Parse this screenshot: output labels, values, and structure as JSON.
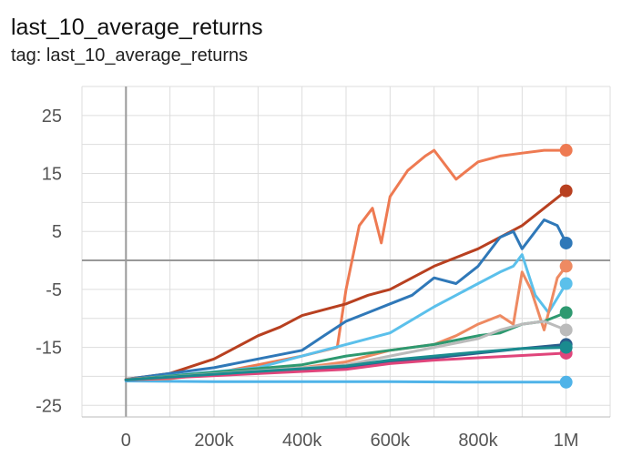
{
  "header": {
    "title": "last_10_average_returns",
    "subtitle": "tag: last_10_average_returns"
  },
  "chart_data": {
    "type": "line",
    "title": "last_10_average_returns",
    "subtitle": "tag: last_10_average_returns",
    "xlabel": "",
    "ylabel": "",
    "xlim": [
      -100000,
      1100000
    ],
    "ylim": [
      -27,
      30
    ],
    "grid": true,
    "legend": "none",
    "xticks": [
      0,
      200000,
      400000,
      600000,
      800000,
      1000000
    ],
    "xtick_labels": [
      "0",
      "200k",
      "400k",
      "600k",
      "800k",
      "1M"
    ],
    "yticks": [
      25,
      15,
      5,
      -5,
      -15,
      -25
    ],
    "ytick_labels": [
      "25",
      "15",
      "5",
      "-5",
      "-15",
      "-25"
    ],
    "series": [
      {
        "color": "#4fb3e8",
        "x": [
          0,
          200000,
          400000,
          600000,
          800000,
          1000000
        ],
        "y": [
          -20.8,
          -20.9,
          -20.9,
          -20.9,
          -21,
          -21
        ]
      },
      {
        "color": "#ee7a52",
        "x": [
          0,
          100000,
          200000,
          300000,
          400000,
          480000,
          500000,
          530000,
          560000,
          580000,
          600000,
          640000,
          680000,
          700000,
          730000,
          750000,
          800000,
          850000,
          900000,
          950000,
          1000000
        ],
        "y": [
          -20.6,
          -20.4,
          -19.5,
          -18,
          -16.5,
          -15,
          -5,
          6,
          9,
          3,
          11,
          15.5,
          18,
          19,
          16,
          14,
          17,
          18,
          18.5,
          19,
          19
        ]
      },
      {
        "color": "#b84020",
        "x": [
          0,
          100000,
          200000,
          250000,
          300000,
          350000,
          400000,
          450000,
          500000,
          550000,
          600000,
          650000,
          700000,
          750000,
          800000,
          850000,
          900000,
          950000,
          1000000
        ],
        "y": [
          -20.5,
          -19.5,
          -17,
          -15,
          -13,
          -11.5,
          -9.5,
          -8.5,
          -7.5,
          -6,
          -5,
          -3,
          -1,
          0.5,
          2,
          4,
          6,
          9,
          12
        ]
      },
      {
        "color": "#2f78b8",
        "x": [
          0,
          200000,
          300000,
          400000,
          450000,
          500000,
          550000,
          600000,
          650000,
          700000,
          750000,
          800000,
          850000,
          880000,
          900000,
          950000,
          980000,
          1000000
        ],
        "y": [
          -20.5,
          -18.5,
          -17,
          -15.5,
          -13,
          -10.5,
          -9,
          -7.5,
          -6,
          -3,
          -4,
          -1,
          4,
          5,
          2,
          7,
          6,
          3
        ]
      },
      {
        "color": "#5bc0eb",
        "x": [
          0,
          300000,
          400000,
          500000,
          600000,
          700000,
          750000,
          800000,
          850000,
          880000,
          900000,
          930000,
          960000,
          1000000
        ],
        "y": [
          -20.6,
          -18.5,
          -16.5,
          -14.5,
          -12.5,
          -8,
          -6,
          -4,
          -2,
          -1,
          1,
          -6,
          -9,
          -4
        ]
      },
      {
        "color": "#ee8a62",
        "x": [
          0,
          400000,
          500000,
          600000,
          700000,
          750000,
          800000,
          850000,
          880000,
          900000,
          920000,
          950000,
          980000,
          1000000
        ],
        "y": [
          -20.5,
          -18.5,
          -17.5,
          -15.5,
          -14.5,
          -13,
          -11,
          -9.5,
          -11,
          -2,
          -5,
          -12,
          -3,
          -1
        ]
      },
      {
        "color": "#2e9970",
        "x": [
          0,
          400000,
          500000,
          600000,
          700000,
          800000,
          850000,
          900000,
          950000,
          1000000
        ],
        "y": [
          -20.6,
          -18,
          -16.5,
          -15.5,
          -14.5,
          -13,
          -12.5,
          -11,
          -10.5,
          -9
        ]
      },
      {
        "color": "#bbbbbb",
        "x": [
          0,
          500000,
          600000,
          700000,
          800000,
          850000,
          900000,
          950000,
          1000000
        ],
        "y": [
          -20.6,
          -18,
          -16.5,
          -15,
          -13.5,
          -12,
          -11,
          -10.5,
          -12
        ]
      },
      {
        "color": "#2a5d8c",
        "x": [
          0,
          500000,
          600000,
          700000,
          800000,
          900000,
          1000000
        ],
        "y": [
          -20.6,
          -18.5,
          -17.5,
          -16.8,
          -16,
          -15.2,
          -14.5
        ]
      },
      {
        "color": "#e0457b",
        "x": [
          0,
          500000,
          600000,
          700000,
          800000,
          900000,
          1000000
        ],
        "y": [
          -20.6,
          -18.8,
          -17.8,
          -17.2,
          -16.8,
          -16.4,
          -16
        ]
      },
      {
        "color": "#1a8b8f",
        "x": [
          0,
          500000,
          600000,
          700000,
          800000,
          900000,
          1000000
        ],
        "y": [
          -20.6,
          -18.2,
          -17.2,
          -16.5,
          -15.8,
          -15.2,
          -15
        ]
      }
    ]
  }
}
